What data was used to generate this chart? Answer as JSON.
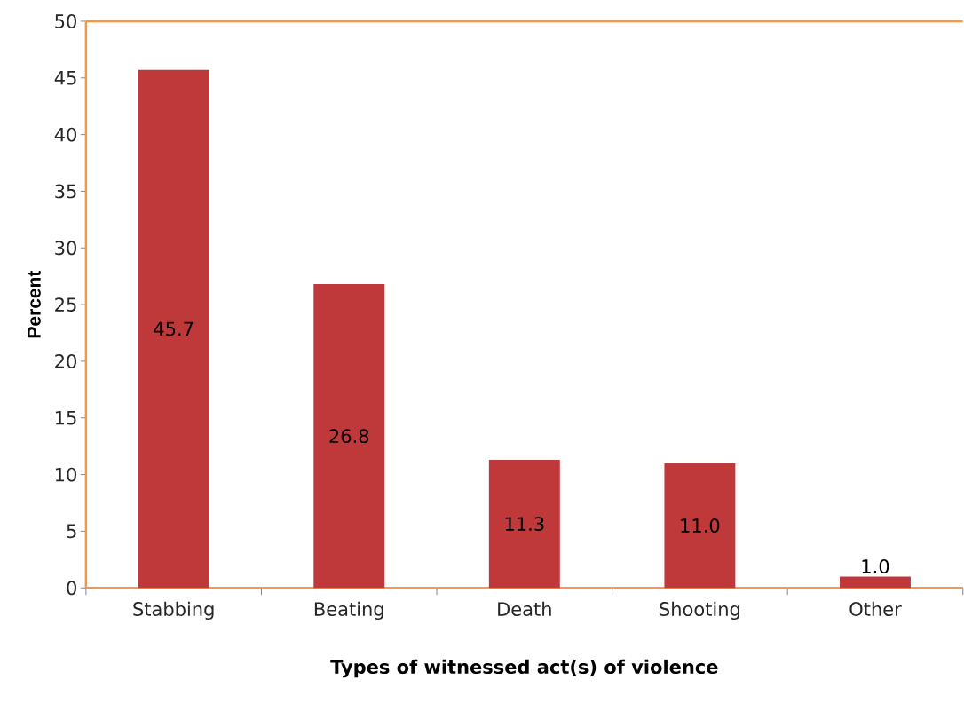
{
  "chart_data": {
    "type": "bar",
    "xlabel": "Types of witnessed act(s) of violence",
    "ylabel": "Percent",
    "categories": [
      "Stabbing",
      "Beating",
      "Death",
      "Shooting",
      "Other"
    ],
    "values": [
      45.7,
      26.8,
      11.3,
      11.0,
      1.0
    ],
    "value_labels": [
      "45.7",
      "26.8",
      "11.3",
      "11.0",
      "1.0"
    ],
    "color": "#c0393a",
    "ylim": [
      0,
      50
    ],
    "yticks": [
      0,
      5,
      10,
      15,
      20,
      25,
      30,
      35,
      40,
      45,
      50
    ],
    "grid": false
  }
}
